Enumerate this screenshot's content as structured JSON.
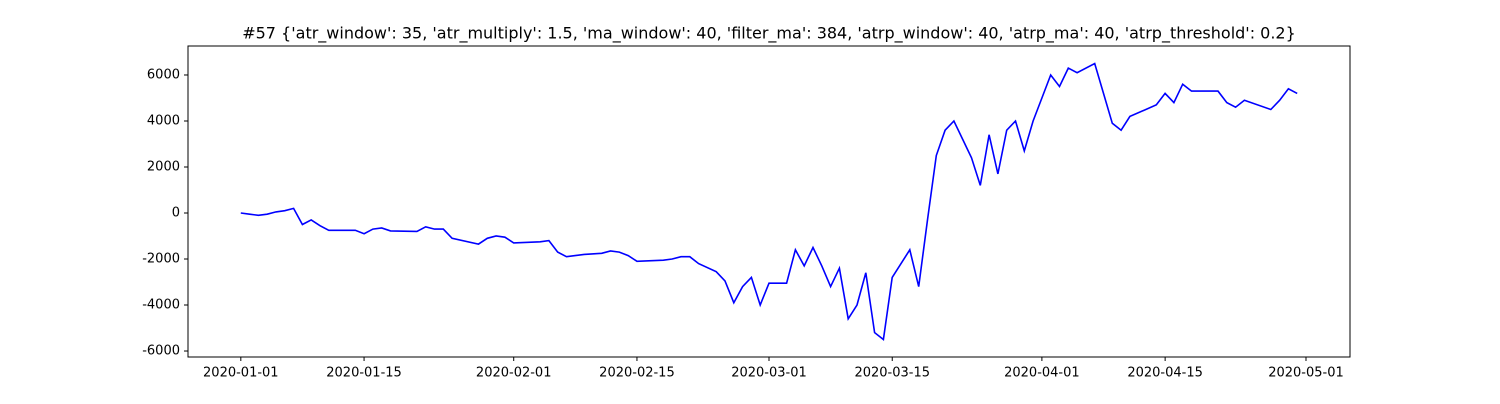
{
  "chart_data": {
    "type": "line",
    "title": "#57 {'atr_window': 35, 'atr_multiply': 1.5, 'ma_window': 40, 'filter_ma': 384, 'atrp_window': 40, 'atrp_ma': 40, 'atrp_threshold': 0.2}",
    "color": "#0000ff",
    "x": [
      "2020-01-01",
      "2020-01-02",
      "2020-01-03",
      "2020-01-04",
      "2020-01-05",
      "2020-01-06",
      "2020-01-07",
      "2020-01-08",
      "2020-01-09",
      "2020-01-10",
      "2020-01-11",
      "2020-01-14",
      "2020-01-15",
      "2020-01-16",
      "2020-01-17",
      "2020-01-18",
      "2020-01-21",
      "2020-01-22",
      "2020-01-23",
      "2020-01-24",
      "2020-01-25",
      "2020-01-28",
      "2020-01-29",
      "2020-01-30",
      "2020-01-31",
      "2020-02-01",
      "2020-02-04",
      "2020-02-05",
      "2020-02-06",
      "2020-02-07",
      "2020-02-09",
      "2020-02-11",
      "2020-02-12",
      "2020-02-13",
      "2020-02-14",
      "2020-02-15",
      "2020-02-18",
      "2020-02-19",
      "2020-02-20",
      "2020-02-21",
      "2020-02-22",
      "2020-02-24",
      "2020-02-25",
      "2020-02-26",
      "2020-02-27",
      "2020-02-28",
      "2020-02-29",
      "2020-03-01",
      "2020-03-03",
      "2020-03-04",
      "2020-03-05",
      "2020-03-06",
      "2020-03-07",
      "2020-03-08",
      "2020-03-09",
      "2020-03-10",
      "2020-03-11",
      "2020-03-12",
      "2020-03-13",
      "2020-03-14",
      "2020-03-15",
      "2020-03-17",
      "2020-03-18",
      "2020-03-19",
      "2020-03-20",
      "2020-03-21",
      "2020-03-22",
      "2020-03-23",
      "2020-03-24",
      "2020-03-25",
      "2020-03-26",
      "2020-03-27",
      "2020-03-28",
      "2020-03-29",
      "2020-03-30",
      "2020-03-31",
      "2020-04-01",
      "2020-04-02",
      "2020-04-03",
      "2020-04-04",
      "2020-04-05",
      "2020-04-07",
      "2020-04-08",
      "2020-04-09",
      "2020-04-10",
      "2020-04-11",
      "2020-04-14",
      "2020-04-15",
      "2020-04-16",
      "2020-04-17",
      "2020-04-18",
      "2020-04-21",
      "2020-04-22",
      "2020-04-23",
      "2020-04-24",
      "2020-04-27",
      "2020-04-28",
      "2020-04-29",
      "2020-04-30"
    ],
    "values": [
      0,
      -50,
      -100,
      -50,
      50,
      100,
      200,
      -500,
      -300,
      -550,
      -750,
      -750,
      -900,
      -700,
      -650,
      -780,
      -800,
      -600,
      -700,
      -700,
      -1100,
      -1350,
      -1100,
      -1000,
      -1050,
      -1300,
      -1250,
      -1200,
      -1700,
      -1900,
      -1800,
      -1750,
      -1650,
      -1700,
      -1850,
      -2100,
      -2050,
      -2000,
      -1900,
      -1900,
      -2200,
      -2550,
      -2950,
      -3900,
      -3200,
      -2800,
      -4000,
      -3050,
      -3050,
      -1600,
      -2300,
      -1500,
      -2300,
      -3200,
      -2400,
      -4600,
      -4000,
      -2600,
      -5200,
      -5500,
      -2800,
      -1600,
      -3200,
      -300,
      2500,
      3600,
      4000,
      3200,
      2400,
      1200,
      3400,
      1700,
      3600,
      4000,
      2700,
      4000,
      5000,
      6000,
      5500,
      6300,
      6100,
      6500,
      5200,
      3900,
      3600,
      4200,
      4700,
      5200,
      4800,
      5600,
      5300,
      5300,
      4800,
      4600,
      4900,
      4500,
      4900,
      5400,
      5200
    ],
    "xlim": [
      "2019-12-26",
      "2020-05-06"
    ],
    "xticks": [
      "2020-01-01",
      "2020-01-15",
      "2020-02-01",
      "2020-02-15",
      "2020-03-01",
      "2020-03-15",
      "2020-04-01",
      "2020-04-15",
      "2020-05-01"
    ],
    "ylim": [
      -6260,
      7260
    ],
    "yticks": [
      -6000,
      -4000,
      -2000,
      0,
      2000,
      4000,
      6000
    ]
  }
}
